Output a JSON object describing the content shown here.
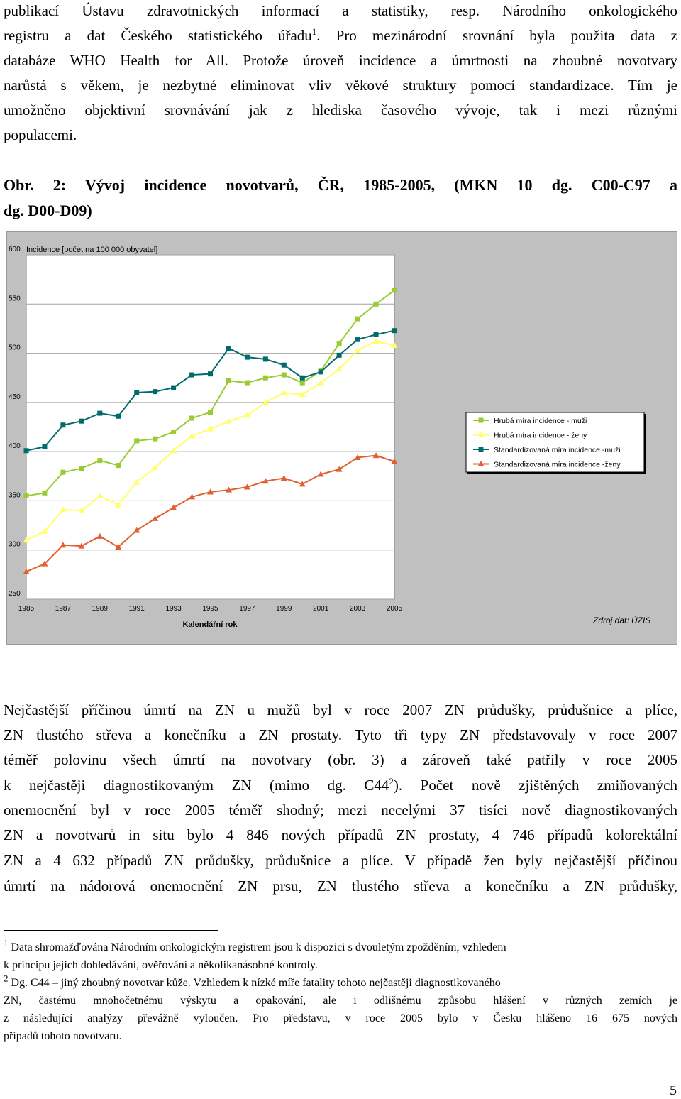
{
  "intro": {
    "lines": [
      "publikací Ústavu zdravotnických informací a statistiky, resp. Národního onkologického",
      "registru a dat Českého statistického úřadu",
      "databáze WHO Health for All. Protože úroveň incidence a úmrtnosti na zhoubné novotvary",
      "narůstá s věkem, je nezbytné eliminovat vliv věkové struktury pomocí standardizace. Tím je",
      "umožněno objektivní srovnávání jak z hlediska časového vývoje, tak i mezi různými",
      "populacemi."
    ],
    "line2_sup": "1",
    "line2_rest": ". Pro mezinárodní srovnání byla použita data z"
  },
  "figure": {
    "caption_line1": "Obr. 2: Vývoj incidence novotvarů, ČR, 1985-2005, (MKN 10 dg. C00-C97 a",
    "caption_line2": "dg. D00-D09)"
  },
  "chart_data": {
    "type": "line",
    "ylabel": "Incidence [počet na 100 000 obyvatel]",
    "xlabel": "Kalendářní rok",
    "source_note": "Zdroj dat: ÚZIS",
    "ylim": [
      250,
      600
    ],
    "yticks": [
      250,
      300,
      350,
      400,
      450,
      500,
      550,
      600
    ],
    "xticks": [
      "1985",
      "1987",
      "1989",
      "1991",
      "1993",
      "1995",
      "1997",
      "1999",
      "2001",
      "2003",
      "2005"
    ],
    "x": [
      1985,
      1986,
      1987,
      1988,
      1989,
      1990,
      1991,
      1992,
      1993,
      1994,
      1995,
      1996,
      1997,
      1998,
      1999,
      2000,
      2001,
      2002,
      2003,
      2004,
      2005
    ],
    "grid": "horizontal",
    "legend_position": "right",
    "series": [
      {
        "name": "Hrubá míra incidence - muži",
        "marker": "square",
        "color": "#99cc33",
        "values": [
          355,
          358,
          379,
          383,
          391,
          386,
          411,
          413,
          420,
          434,
          440,
          472,
          470,
          475,
          478,
          470,
          482,
          510,
          535,
          550,
          564
        ]
      },
      {
        "name": "Hrubá míra incidence - ženy",
        "marker": "triangle",
        "color": "#ffff66",
        "values": [
          310,
          319,
          341,
          340,
          355,
          346,
          369,
          384,
          401,
          416,
          423,
          431,
          437,
          450,
          460,
          458,
          470,
          484,
          503,
          512,
          508
        ]
      },
      {
        "name": "Standardizovaná míra incidence -muži",
        "marker": "square",
        "color": "#006b6b",
        "values": [
          401,
          405,
          427,
          431,
          439,
          436,
          460,
          461,
          465,
          478,
          479,
          505,
          496,
          494,
          488,
          475,
          481,
          498,
          514,
          519,
          523
        ]
      },
      {
        "name": "Standardizovaná míra incidence -ženy",
        "marker": "triangle",
        "color": "#e06030",
        "values": [
          278,
          286,
          305,
          304,
          314,
          303,
          320,
          332,
          343,
          354,
          359,
          361,
          364,
          370,
          373,
          367,
          377,
          382,
          394,
          396,
          390
        ]
      }
    ]
  },
  "body": {
    "lines": [
      "Nejčastější příčinou úmrtí na ZN u mužů byl v roce 2007 ZN průdušky, průdušnice a plíce,",
      "ZN tlustého střeva a konečníku a ZN prostaty. Tyto tři typy ZN představovaly v roce 2007",
      "téměř polovinu všech úmrtí na novotvary (obr. 3) a zároveň také patřily v roce 2005",
      "k nejčastěji diagnostikovaným ZN (mimo dg. C44",
      "onemocnění byl v roce 2005 téměř shodný; mezi necelými 37 tisíci nově diagnostikovaných",
      "ZN a novotvarů in situ bylo 4 846 nových případů ZN prostaty, 4 746 případů kolorektální",
      "ZN a 4 632 případů ZN průdušky, průdušnice a plíce. V případě žen byly nejčastější příčinou",
      "úmrtí na nádorová onemocnění ZN prsu, ZN tlustého střeva a konečníku a ZN průdušky,"
    ],
    "line4_sup": "2",
    "line4_rest": "). Počet nově zjištěných zmiňovaných"
  },
  "footnotes": {
    "fn1_mark": "1",
    "fn1_line1": "Data shromažďována Národním onkologickým registrem jsou k dispozici s dvouletým zpožděním, vzhledem",
    "fn1_line2": "k principu jejich dohledávání, ověřování a několikanásobné kontroly.",
    "fn2_mark": "2",
    "fn2_line1": "Dg. C44 – jiný zhoubný novotvar kůže. Vzhledem k nízké míře fatality tohoto nejčastěji diagnostikovaného",
    "fn2_line2": "ZN, častému mnohočetnému výskytu a opakování, ale i odlišnému způsobu hlášení v různých zemích je",
    "fn2_line3": "z následující analýzy převážně vyloučen. Pro představu, v roce 2005 bylo v Česku hlášeno 16 675 nových",
    "fn2_line4": "případů tohoto novotvaru."
  },
  "page_number": "5"
}
